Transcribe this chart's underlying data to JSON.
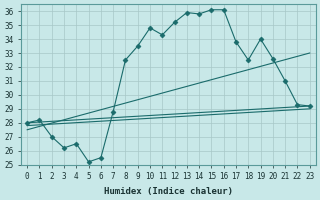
{
  "xlabel": "Humidex (Indice chaleur)",
  "background_color": "#c8e8e8",
  "line_color": "#1a6b6b",
  "grid_color": "#b0d0d0",
  "xlim": [
    -0.5,
    23.5
  ],
  "ylim": [
    25,
    36.5
  ],
  "yticks": [
    25,
    26,
    27,
    28,
    29,
    30,
    31,
    32,
    33,
    34,
    35,
    36
  ],
  "xticks": [
    0,
    1,
    2,
    3,
    4,
    5,
    6,
    7,
    8,
    9,
    10,
    11,
    12,
    13,
    14,
    15,
    16,
    17,
    18,
    19,
    20,
    21,
    22,
    23
  ],
  "series": [
    {
      "x": [
        0,
        1,
        2,
        3,
        4,
        5,
        6,
        7,
        8,
        9,
        10,
        11,
        12,
        13,
        14,
        15,
        16,
        17,
        18,
        19,
        20,
        21,
        22,
        23
      ],
      "y": [
        28.0,
        28.2,
        27.0,
        26.2,
        26.5,
        25.2,
        25.5,
        28.8,
        32.5,
        33.5,
        34.8,
        34.3,
        35.2,
        35.9,
        35.8,
        36.1,
        36.1,
        33.8,
        32.5,
        34.0,
        32.6,
        31.0,
        29.3,
        29.2
      ],
      "marker": "D",
      "markersize": 2.5
    },
    {
      "x": [
        0,
        23
      ],
      "y": [
        28.0,
        29.2
      ],
      "marker": null,
      "markersize": 0
    },
    {
      "x": [
        0,
        23
      ],
      "y": [
        27.5,
        33.0
      ],
      "marker": null,
      "markersize": 0
    },
    {
      "x": [
        0,
        23
      ],
      "y": [
        27.8,
        29.0
      ],
      "marker": null,
      "markersize": 0
    }
  ]
}
